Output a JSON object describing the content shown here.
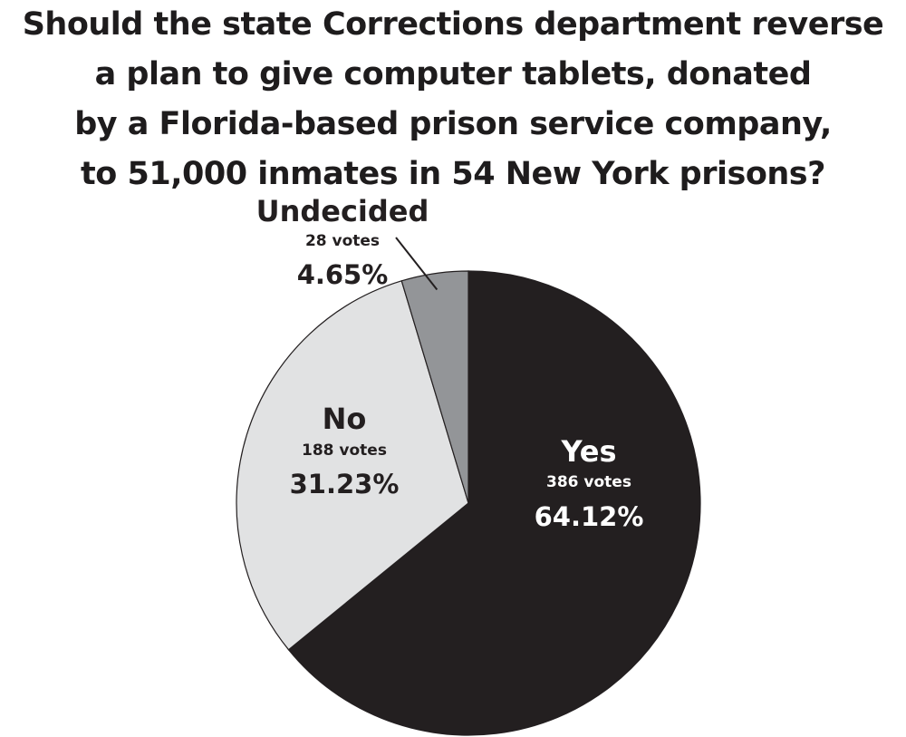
{
  "title_lines": [
    "Should the state Corrections department reverse",
    "a plan to give computer tablets, donated",
    "by a Florida-based prison service company,",
    "to 51,000 inmates in 54 New York prisons?"
  ],
  "chart_data": {
    "type": "pie",
    "title": "Should the state Corrections department reverse a plan to give computer tablets, donated by a Florida-based prison service company, to 51,000 inmates in 54 New York prisons?",
    "legend": "none",
    "slices": [
      {
        "name": "Yes",
        "votes": 386,
        "votes_label": "386 votes",
        "percent": 64.12,
        "percent_label": "64.12%",
        "color": "#231f20",
        "text_color": "#ffffff"
      },
      {
        "name": "No",
        "votes": 188,
        "votes_label": "188 votes",
        "percent": 31.23,
        "percent_label": "31.23%",
        "color": "#e1e2e3",
        "text_color": "#231f20"
      },
      {
        "name": "Undecided",
        "votes": 28,
        "votes_label": "28 votes",
        "percent": 4.65,
        "percent_label": "4.65%",
        "color": "#939598",
        "text_color": "#231f20"
      }
    ]
  }
}
